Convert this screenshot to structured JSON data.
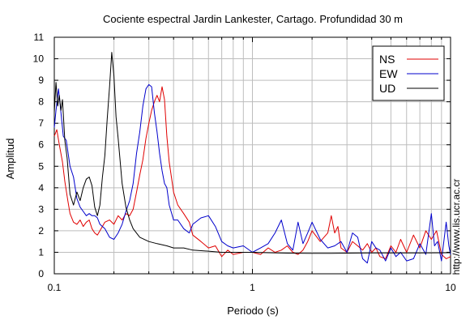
{
  "chart_data": {
    "type": "line",
    "title": "Cociente espectral Jardin Lankester, Cartago. Profundidad 30 m",
    "xlabel": "Periodo (s)",
    "ylabel": "Amplitud",
    "x_scale": "log",
    "xlim": [
      0.1,
      10
    ],
    "ylim": [
      0,
      11
    ],
    "x_tick_labels": [
      "0.1",
      "1",
      "10"
    ],
    "y_ticks": [
      0,
      1,
      2,
      3,
      4,
      5,
      6,
      7,
      8,
      9,
      10,
      11
    ],
    "grid": true,
    "legend_position": "top-right",
    "annotation": "http://www.lis.ucr.ac.cr",
    "series": [
      {
        "name": "NS",
        "color": "#e00000",
        "x": [
          0.1,
          0.103,
          0.106,
          0.11,
          0.113,
          0.117,
          0.12,
          0.125,
          0.13,
          0.135,
          0.14,
          0.145,
          0.15,
          0.155,
          0.16,
          0.165,
          0.17,
          0.18,
          0.19,
          0.2,
          0.21,
          0.22,
          0.23,
          0.24,
          0.25,
          0.26,
          0.27,
          0.28,
          0.29,
          0.3,
          0.31,
          0.32,
          0.33,
          0.34,
          0.35,
          0.36,
          0.37,
          0.38,
          0.4,
          0.42,
          0.45,
          0.48,
          0.5,
          0.55,
          0.6,
          0.65,
          0.7,
          0.75,
          0.8,
          0.9,
          1.0,
          1.1,
          1.2,
          1.3,
          1.4,
          1.5,
          1.6,
          1.7,
          1.8,
          1.9,
          2.0,
          2.2,
          2.4,
          2.5,
          2.6,
          2.7,
          2.8,
          3.0,
          3.2,
          3.4,
          3.6,
          3.8,
          4.0,
          4.2,
          4.4,
          4.7,
          5.0,
          5.3,
          5.6,
          6.0,
          6.5,
          7.0,
          7.5,
          8.0,
          8.5,
          9.0,
          9.5,
          10.0
        ],
        "y": [
          6.4,
          6.7,
          6.0,
          5.2,
          4.3,
          3.4,
          2.8,
          2.4,
          2.3,
          2.5,
          2.2,
          2.4,
          2.5,
          2.1,
          1.9,
          1.8,
          2.0,
          2.4,
          2.5,
          2.3,
          2.7,
          2.5,
          2.8,
          2.7,
          3.0,
          3.8,
          4.6,
          5.3,
          6.3,
          7.0,
          7.6,
          8.0,
          8.3,
          8.0,
          8.7,
          8.1,
          6.4,
          5.2,
          3.8,
          3.2,
          2.8,
          2.4,
          1.8,
          1.5,
          1.2,
          1.3,
          0.8,
          1.1,
          0.9,
          1.0,
          1.0,
          0.9,
          1.2,
          1.0,
          1.1,
          1.3,
          1.0,
          0.9,
          1.1,
          1.5,
          2.0,
          1.5,
          1.9,
          2.7,
          1.9,
          2.2,
          1.2,
          1.0,
          1.5,
          1.3,
          1.1,
          1.4,
          1.0,
          1.2,
          0.8,
          0.7,
          1.3,
          1.0,
          1.6,
          1.0,
          1.8,
          1.2,
          2.0,
          1.6,
          2.0,
          0.9,
          0.7,
          0.8
        ]
      },
      {
        "name": "EW",
        "color": "#0000cc",
        "x": [
          0.1,
          0.102,
          0.105,
          0.108,
          0.111,
          0.115,
          0.12,
          0.125,
          0.13,
          0.135,
          0.14,
          0.145,
          0.15,
          0.155,
          0.16,
          0.165,
          0.17,
          0.18,
          0.19,
          0.2,
          0.21,
          0.22,
          0.23,
          0.24,
          0.25,
          0.26,
          0.27,
          0.28,
          0.29,
          0.3,
          0.31,
          0.32,
          0.33,
          0.34,
          0.35,
          0.36,
          0.37,
          0.38,
          0.4,
          0.42,
          0.45,
          0.48,
          0.5,
          0.55,
          0.6,
          0.65,
          0.7,
          0.75,
          0.8,
          0.9,
          1.0,
          1.1,
          1.2,
          1.3,
          1.4,
          1.5,
          1.6,
          1.7,
          1.8,
          1.9,
          2.0,
          2.2,
          2.4,
          2.6,
          2.8,
          3.0,
          3.2,
          3.4,
          3.6,
          3.8,
          4.0,
          4.2,
          4.4,
          4.7,
          5.0,
          5.3,
          5.6,
          6.0,
          6.5,
          7.0,
          7.5,
          8.0,
          8.3,
          8.6,
          9.0,
          9.5,
          9.8,
          10.0
        ],
        "y": [
          6.8,
          7.6,
          8.6,
          7.5,
          6.4,
          6.2,
          5.0,
          4.5,
          3.5,
          3.1,
          2.9,
          2.7,
          2.8,
          2.7,
          2.7,
          2.6,
          2.3,
          2.1,
          1.7,
          1.6,
          1.9,
          2.3,
          2.9,
          3.4,
          4.2,
          5.6,
          6.6,
          7.8,
          8.6,
          8.8,
          8.7,
          7.5,
          6.6,
          5.6,
          4.8,
          4.2,
          4.0,
          3.2,
          2.5,
          2.5,
          2.1,
          1.9,
          2.3,
          2.6,
          2.7,
          2.2,
          1.5,
          1.3,
          1.2,
          1.3,
          1.0,
          1.2,
          1.4,
          1.9,
          2.5,
          1.4,
          1.1,
          2.4,
          1.4,
          1.9,
          2.4,
          1.6,
          1.2,
          1.3,
          1.5,
          1.0,
          1.9,
          1.7,
          0.7,
          0.5,
          1.5,
          1.2,
          1.1,
          0.6,
          1.2,
          0.8,
          1.0,
          0.6,
          0.7,
          1.4,
          0.9,
          2.8,
          1.3,
          1.5,
          0.6,
          2.4,
          1.3,
          0.9
        ]
      },
      {
        "name": "UD",
        "color": "#000000",
        "x": [
          0.1,
          0.102,
          0.104,
          0.106,
          0.108,
          0.11,
          0.113,
          0.116,
          0.12,
          0.125,
          0.13,
          0.135,
          0.14,
          0.145,
          0.15,
          0.155,
          0.16,
          0.165,
          0.17,
          0.175,
          0.18,
          0.185,
          0.19,
          0.195,
          0.2,
          0.205,
          0.21,
          0.22,
          0.23,
          0.24,
          0.25,
          0.27,
          0.3,
          0.33,
          0.37,
          0.4,
          0.45,
          0.5,
          0.6,
          0.7,
          0.8,
          1.0,
          1.2,
          1.5,
          2.0,
          2.5,
          3.0,
          4.0,
          5.0,
          7.0,
          10.0
        ],
        "y": [
          7.5,
          8.9,
          7.8,
          8.3,
          7.6,
          8.1,
          6.2,
          5.4,
          3.7,
          3.2,
          3.8,
          3.4,
          4.0,
          4.4,
          4.5,
          4.1,
          3.1,
          2.7,
          3.2,
          4.5,
          5.5,
          7.2,
          8.7,
          10.3,
          9.2,
          7.3,
          6.3,
          4.2,
          3.1,
          2.5,
          2.1,
          1.7,
          1.5,
          1.4,
          1.3,
          1.2,
          1.2,
          1.1,
          1.05,
          1.0,
          1.0,
          1.0,
          0.98,
          0.96,
          0.95,
          0.95,
          0.96,
          0.97,
          0.97,
          0.97,
          0.98
        ]
      }
    ]
  }
}
